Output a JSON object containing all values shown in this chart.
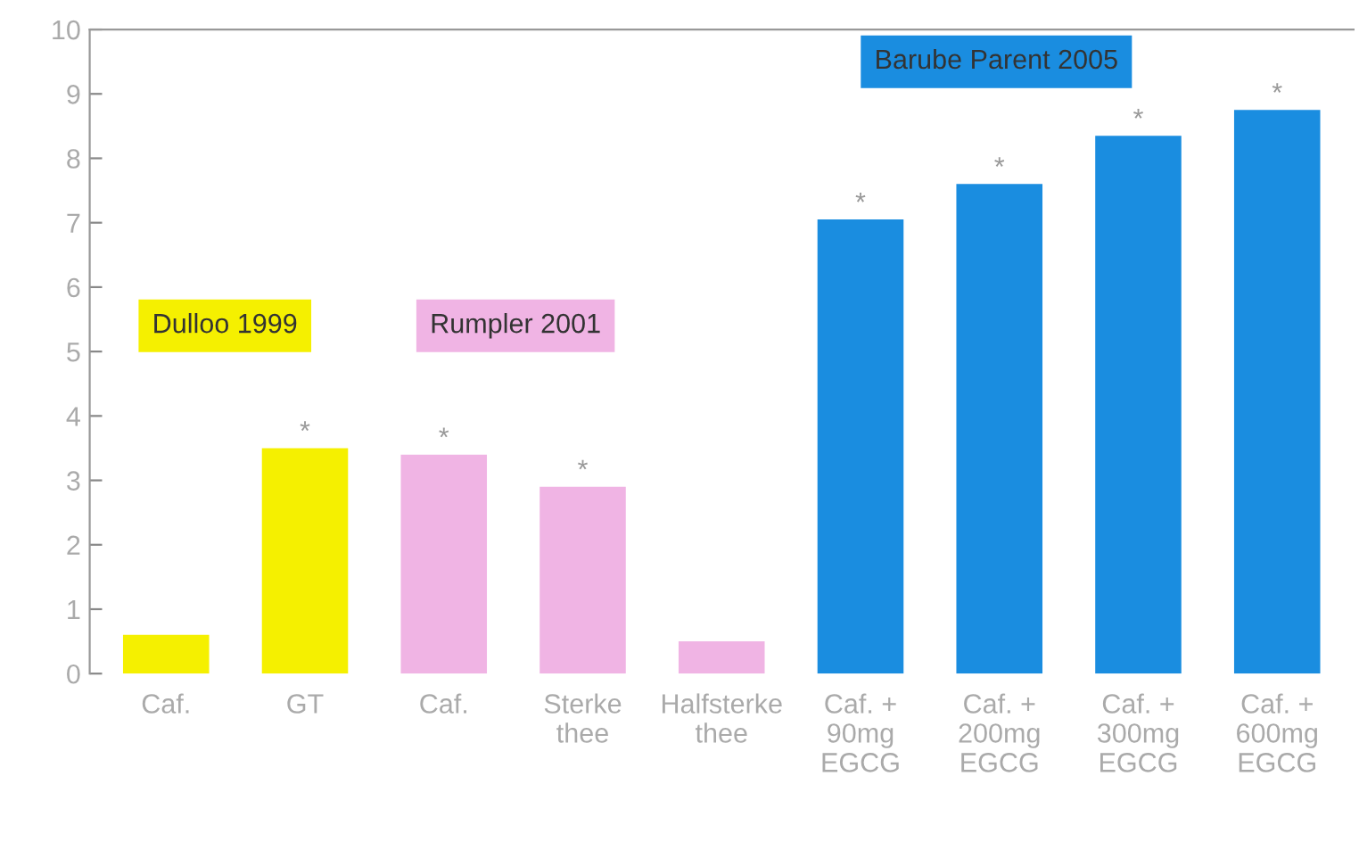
{
  "chart_data": {
    "type": "bar",
    "categories": [
      "Caf.",
      "GT",
      "Caf.",
      "Sterke\nthee",
      "Halfsterke\nthee",
      "Caf. +\n90mg\nEGCG",
      "Caf. +\n200mg\nEGCG",
      "Caf. +\n300mg\nEGCG",
      "Caf. +\n600mg\nEGCG"
    ],
    "values": [
      0.6,
      3.5,
      3.4,
      2.9,
      0.5,
      7.05,
      7.6,
      8.35,
      8.75
    ],
    "colors": [
      "#f5f000",
      "#f5f000",
      "#f0b4e4",
      "#f0b4e4",
      "#f0b4e4",
      "#1a8de0",
      "#1a8de0",
      "#1a8de0",
      "#1a8de0"
    ],
    "value_labels": [
      null,
      "*",
      "*",
      "*",
      null,
      "*",
      "*",
      "*",
      "*"
    ],
    "annotations": [
      "Dulloo 1999",
      "Rumpler 2001",
      "Barube Parent 2005"
    ],
    "ylim": [
      0,
      10
    ],
    "yticks": [
      0,
      1,
      2,
      3,
      4,
      5,
      6,
      7,
      8,
      9,
      10
    ],
    "grid": false
  }
}
